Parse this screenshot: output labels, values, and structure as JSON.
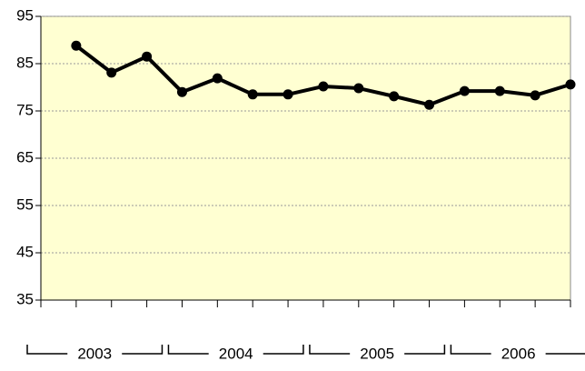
{
  "chart_data": {
    "type": "line",
    "categories": [
      null,
      null,
      null,
      null,
      null,
      null,
      null,
      null,
      null,
      null,
      null,
      null,
      null,
      null,
      null
    ],
    "groups": [
      "2003",
      "2004",
      "2005",
      "2006"
    ],
    "values": [
      88.8,
      83.1,
      86.5,
      79.0,
      81.9,
      78.5,
      78.5,
      80.2,
      79.8,
      78.1,
      76.3,
      79.2,
      79.2,
      78.3,
      80.6
    ],
    "color": "#000000",
    "background": "#ffffd2",
    "ylim": [
      35,
      95
    ],
    "yticks": [
      35,
      45,
      55,
      65,
      75,
      85,
      95
    ],
    "grid": true
  }
}
